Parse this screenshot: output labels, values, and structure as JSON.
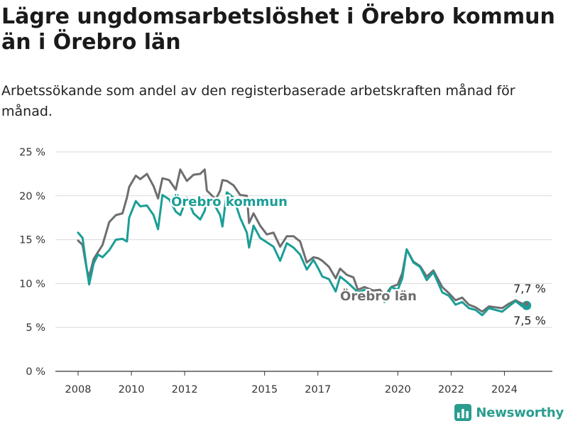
{
  "title": "Lägre ungdomsarbetslöshet i Örebro kommun än i Örebro län",
  "subtitle": "Arbetssökande som andel av den registerbaserade arbetskraften månad för månad.",
  "brand": {
    "name": "Newsworthy",
    "logo_icon": "bar-chart-icon"
  },
  "colors": {
    "kommun": "#1a9e96",
    "lan": "#6e6e70",
    "grid": "#d9d9d9",
    "axis": "#333333"
  },
  "chart_data": {
    "type": "line",
    "x_ticks": [
      "2008",
      "2010",
      "2012",
      "2015",
      "2017",
      "2020",
      "2022",
      "2024"
    ],
    "y_ticks": [
      "0 %",
      "5 %",
      "10 %",
      "15 %",
      "20 %",
      "25 %"
    ],
    "ylim": [
      0,
      25
    ],
    "grid": true,
    "series": [
      {
        "name": "Örebro kommun",
        "end_label": "7,5 %",
        "points": [
          [
            "2008-01",
            15.8
          ],
          [
            "2008-03",
            15.2
          ],
          [
            "2008-05",
            11.5
          ],
          [
            "2008-06",
            9.9
          ],
          [
            "2008-08",
            12.3
          ],
          [
            "2008-10",
            13.3
          ],
          [
            "2008-12",
            13.0
          ],
          [
            "2009-03",
            13.8
          ],
          [
            "2009-06",
            15.0
          ],
          [
            "2009-09",
            15.1
          ],
          [
            "2009-11",
            14.8
          ],
          [
            "2009-12",
            17.5
          ],
          [
            "2010-03",
            19.4
          ],
          [
            "2010-05",
            18.8
          ],
          [
            "2010-08",
            18.9
          ],
          [
            "2010-11",
            17.8
          ],
          [
            "2011-01",
            16.2
          ],
          [
            "2011-03",
            20.1
          ],
          [
            "2011-06",
            19.6
          ],
          [
            "2011-09",
            18.2
          ],
          [
            "2011-11",
            17.8
          ],
          [
            "2012-02",
            19.8
          ],
          [
            "2012-05",
            18.0
          ],
          [
            "2012-08",
            17.3
          ],
          [
            "2012-10",
            18.3
          ],
          [
            "2012-11",
            19.6
          ],
          [
            "2013-03",
            18.7
          ],
          [
            "2013-05",
            17.8
          ],
          [
            "2013-06",
            16.5
          ],
          [
            "2013-08",
            20.4
          ],
          [
            "2013-11",
            19.8
          ],
          [
            "2014-02",
            17.5
          ],
          [
            "2014-05",
            15.8
          ],
          [
            "2014-06",
            14.1
          ],
          [
            "2014-08",
            16.6
          ],
          [
            "2014-11",
            15.2
          ],
          [
            "2015-02",
            14.7
          ],
          [
            "2015-05",
            14.2
          ],
          [
            "2015-08",
            12.6
          ],
          [
            "2015-11",
            14.6
          ],
          [
            "2016-02",
            14.1
          ],
          [
            "2016-05",
            13.3
          ],
          [
            "2016-08",
            11.6
          ],
          [
            "2016-11",
            12.7
          ],
          [
            "2017-01",
            11.8
          ],
          [
            "2017-03",
            10.8
          ],
          [
            "2017-06",
            10.5
          ],
          [
            "2017-09",
            9.1
          ],
          [
            "2017-11",
            10.8
          ],
          [
            "2018-02",
            10.2
          ],
          [
            "2018-05",
            9.5
          ],
          [
            "2018-07",
            9.0
          ],
          [
            "2018-10",
            9.3
          ],
          [
            "2019-02",
            8.9
          ],
          [
            "2019-05",
            8.9
          ],
          [
            "2019-07",
            7.9
          ],
          [
            "2019-10",
            9.6
          ],
          [
            "2020-01",
            9.3
          ],
          [
            "2020-03",
            10.6
          ],
          [
            "2020-05",
            13.9
          ],
          [
            "2020-08",
            12.4
          ],
          [
            "2020-11",
            11.9
          ],
          [
            "2021-02",
            10.4
          ],
          [
            "2021-05",
            11.3
          ],
          [
            "2021-09",
            9.0
          ],
          [
            "2021-12",
            8.6
          ],
          [
            "2022-03",
            7.6
          ],
          [
            "2022-06",
            7.9
          ],
          [
            "2022-09",
            7.2
          ],
          [
            "2022-12",
            7.0
          ],
          [
            "2023-03",
            6.4
          ],
          [
            "2023-06",
            7.2
          ],
          [
            "2023-09",
            7.0
          ],
          [
            "2023-12",
            6.8
          ],
          [
            "2024-03",
            7.4
          ],
          [
            "2024-06",
            8.0
          ],
          [
            "2024-09",
            7.4
          ],
          [
            "2024-11",
            7.5
          ]
        ]
      },
      {
        "name": "Örebro län",
        "end_label": "7,7 %",
        "points": [
          [
            "2008-01",
            14.9
          ],
          [
            "2008-03",
            14.4
          ],
          [
            "2008-05",
            11.5
          ],
          [
            "2008-06",
            10.8
          ],
          [
            "2008-08",
            12.8
          ],
          [
            "2008-10",
            13.6
          ],
          [
            "2008-12",
            14.4
          ],
          [
            "2009-03",
            17.0
          ],
          [
            "2009-06",
            17.8
          ],
          [
            "2009-09",
            18.0
          ],
          [
            "2009-11",
            19.8
          ],
          [
            "2009-12",
            21.0
          ],
          [
            "2010-03",
            22.3
          ],
          [
            "2010-05",
            21.9
          ],
          [
            "2010-08",
            22.5
          ],
          [
            "2010-11",
            21.1
          ],
          [
            "2011-01",
            19.7
          ],
          [
            "2011-03",
            22.0
          ],
          [
            "2011-06",
            21.8
          ],
          [
            "2011-09",
            20.7
          ],
          [
            "2011-11",
            23.0
          ],
          [
            "2012-02",
            21.7
          ],
          [
            "2012-05",
            22.4
          ],
          [
            "2012-08",
            22.5
          ],
          [
            "2012-10",
            23.0
          ],
          [
            "2012-11",
            20.6
          ],
          [
            "2013-03",
            19.6
          ],
          [
            "2013-05",
            20.6
          ],
          [
            "2013-06",
            21.8
          ],
          [
            "2013-08",
            21.7
          ],
          [
            "2013-11",
            21.2
          ],
          [
            "2014-02",
            20.1
          ],
          [
            "2014-05",
            20.0
          ],
          [
            "2014-06",
            16.9
          ],
          [
            "2014-08",
            18.0
          ],
          [
            "2014-11",
            16.6
          ],
          [
            "2015-02",
            15.6
          ],
          [
            "2015-05",
            15.8
          ],
          [
            "2015-08",
            14.2
          ],
          [
            "2015-11",
            15.4
          ],
          [
            "2016-02",
            15.4
          ],
          [
            "2016-05",
            14.8
          ],
          [
            "2016-08",
            12.4
          ],
          [
            "2016-11",
            13.0
          ],
          [
            "2017-01",
            12.9
          ],
          [
            "2017-03",
            12.6
          ],
          [
            "2017-06",
            11.9
          ],
          [
            "2017-09",
            10.6
          ],
          [
            "2017-11",
            11.7
          ],
          [
            "2018-02",
            11.0
          ],
          [
            "2018-05",
            10.7
          ],
          [
            "2018-07",
            9.3
          ],
          [
            "2018-10",
            9.6
          ],
          [
            "2019-02",
            9.2
          ],
          [
            "2019-05",
            9.3
          ],
          [
            "2019-07",
            8.6
          ],
          [
            "2019-10",
            9.6
          ],
          [
            "2020-01",
            9.9
          ],
          [
            "2020-03",
            11.2
          ],
          [
            "2020-05",
            13.9
          ],
          [
            "2020-08",
            12.5
          ],
          [
            "2020-11",
            12.0
          ],
          [
            "2021-02",
            10.8
          ],
          [
            "2021-05",
            11.5
          ],
          [
            "2021-09",
            9.6
          ],
          [
            "2021-12",
            8.9
          ],
          [
            "2022-03",
            8.1
          ],
          [
            "2022-06",
            8.4
          ],
          [
            "2022-09",
            7.6
          ],
          [
            "2022-12",
            7.3
          ],
          [
            "2023-03",
            6.8
          ],
          [
            "2023-06",
            7.4
          ],
          [
            "2023-09",
            7.3
          ],
          [
            "2023-12",
            7.2
          ],
          [
            "2024-03",
            7.7
          ],
          [
            "2024-06",
            8.1
          ],
          [
            "2024-09",
            7.7
          ],
          [
            "2024-11",
            7.7
          ]
        ]
      }
    ]
  }
}
